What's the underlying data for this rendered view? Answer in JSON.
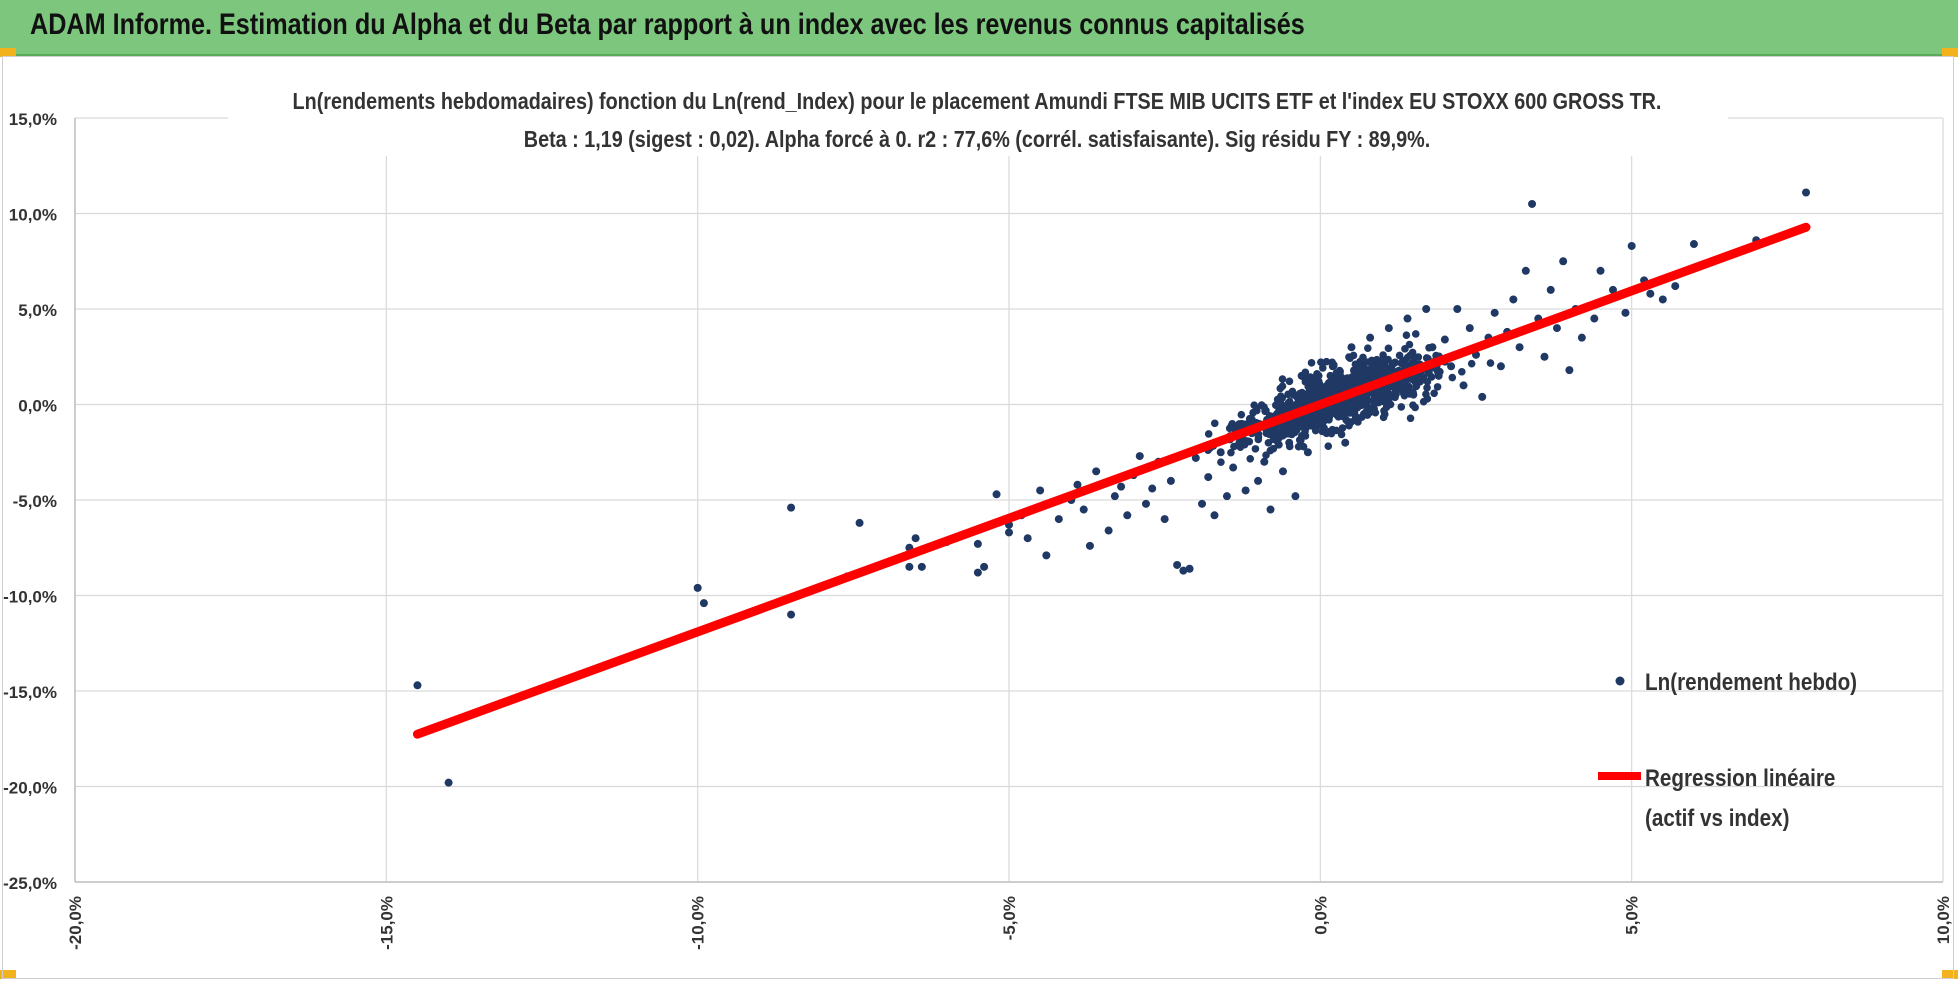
{
  "header": {
    "title": "ADAM Informe. Estimation du Alpha et du Beta par rapport à un index avec les revenus connus capitalisés"
  },
  "colors": {
    "banner": "#7dc67d",
    "points": "#203864",
    "regression": "#ff0000",
    "grid": "#d9d9d9",
    "corner": "#f2b21b"
  },
  "chart_data": {
    "type": "scatter",
    "title": "Ln(rendements hebdomadaires) fonction du Ln(rend_Index) pour le placement Amundi FTSE MIB UCITS ETF et l'index EU STOXX 600 GROSS TR.",
    "subtitle": "Beta : 1,19 (sigest : 0,02). Alpha forcé à 0. r2 : 77,6% (corrél. satisfaisante). Sig résidu FY : 89,9%.",
    "xlabel": "",
    "ylabel": "",
    "xlim": [
      -0.2,
      0.1
    ],
    "ylim": [
      -0.25,
      0.15
    ],
    "x_ticks": [
      -0.2,
      -0.15,
      -0.1,
      -0.05,
      0.0,
      0.05,
      0.1
    ],
    "y_ticks": [
      0.15,
      0.1,
      0.05,
      0.0,
      -0.05,
      -0.1,
      -0.15,
      -0.2,
      -0.25
    ],
    "x_tick_labels": [
      "-20,0%",
      "-15,0%",
      "-10,0%",
      "-5,0%",
      "0,0%",
      "5,0%",
      "10,0%"
    ],
    "y_tick_labels": [
      "15,0%",
      "10,0%",
      "5,0%",
      "0,0%",
      "-5,0%",
      "-10,0%",
      "-15,0%",
      "-20,0%",
      "-25,0%"
    ],
    "grid": true,
    "legend_position": "right",
    "series": [
      {
        "name": "Ln(rendement hebdo)",
        "kind": "scatter",
        "color": "#203864",
        "points": [
          [
            -0.145,
            -0.147
          ],
          [
            -0.14,
            -0.198
          ],
          [
            -0.1,
            -0.096
          ],
          [
            -0.099,
            -0.104
          ],
          [
            -0.085,
            -0.054
          ],
          [
            -0.085,
            -0.11
          ],
          [
            -0.074,
            -0.062
          ],
          [
            -0.076,
            -0.09
          ],
          [
            -0.066,
            -0.075
          ],
          [
            -0.064,
            -0.085
          ],
          [
            -0.066,
            -0.085
          ],
          [
            -0.065,
            -0.07
          ],
          [
            -0.06,
            -0.072
          ],
          [
            -0.055,
            -0.088
          ],
          [
            -0.054,
            -0.085
          ],
          [
            -0.055,
            -0.073
          ],
          [
            -0.052,
            -0.047
          ],
          [
            -0.05,
            -0.063
          ],
          [
            -0.05,
            -0.067
          ],
          [
            -0.048,
            -0.058
          ],
          [
            -0.047,
            -0.07
          ],
          [
            -0.045,
            -0.045
          ],
          [
            -0.044,
            -0.079
          ],
          [
            -0.042,
            -0.06
          ],
          [
            -0.04,
            -0.05
          ],
          [
            -0.039,
            -0.042
          ],
          [
            -0.038,
            -0.055
          ],
          [
            -0.037,
            -0.074
          ],
          [
            -0.036,
            -0.035
          ],
          [
            -0.034,
            -0.066
          ],
          [
            -0.033,
            -0.048
          ],
          [
            -0.032,
            -0.043
          ],
          [
            -0.031,
            -0.058
          ],
          [
            -0.03,
            -0.037
          ],
          [
            -0.029,
            -0.027
          ],
          [
            -0.028,
            -0.052
          ],
          [
            -0.027,
            -0.044
          ],
          [
            -0.026,
            -0.03
          ],
          [
            -0.025,
            -0.06
          ],
          [
            -0.024,
            -0.04
          ],
          [
            -0.023,
            -0.084
          ],
          [
            -0.022,
            -0.087
          ],
          [
            -0.021,
            -0.086
          ],
          [
            -0.02,
            -0.028
          ],
          [
            -0.019,
            -0.052
          ],
          [
            -0.018,
            -0.038
          ],
          [
            -0.017,
            -0.058
          ],
          [
            -0.016,
            -0.025
          ],
          [
            -0.015,
            -0.048
          ],
          [
            -0.014,
            -0.033
          ],
          [
            -0.013,
            -0.02
          ],
          [
            -0.012,
            -0.045
          ],
          [
            -0.011,
            -0.015
          ],
          [
            -0.01,
            -0.04
          ],
          [
            -0.009,
            -0.03
          ],
          [
            -0.008,
            -0.055
          ],
          [
            -0.007,
            -0.008
          ],
          [
            -0.006,
            -0.035
          ],
          [
            -0.005,
            -0.02
          ],
          [
            -0.004,
            -0.048
          ],
          [
            -0.003,
            0.015
          ],
          [
            -0.002,
            -0.025
          ],
          [
            -0.001,
            -0.01
          ],
          [
            0.0,
            0.008
          ],
          [
            0.001,
            -0.015
          ],
          [
            0.002,
            0.02
          ],
          [
            0.003,
            0.005
          ],
          [
            0.004,
            -0.02
          ],
          [
            0.005,
            0.03
          ],
          [
            0.006,
            0.01
          ],
          [
            0.007,
            -0.005
          ],
          [
            0.008,
            0.035
          ],
          [
            0.009,
            0.018
          ],
          [
            0.01,
            0.002
          ],
          [
            0.011,
            0.04
          ],
          [
            0.012,
            0.022
          ],
          [
            0.013,
            0.008
          ],
          [
            0.014,
            0.045
          ],
          [
            0.015,
            0.025
          ],
          [
            0.016,
            0.012
          ],
          [
            0.017,
            0.05
          ],
          [
            0.018,
            0.03
          ],
          [
            0.019,
            0.015
          ],
          [
            0.02,
            0.034
          ],
          [
            0.021,
            0.02
          ],
          [
            0.022,
            0.05
          ],
          [
            0.023,
            0.01
          ],
          [
            0.024,
            0.04
          ],
          [
            0.025,
            0.026
          ],
          [
            0.026,
            0.004
          ],
          [
            0.027,
            0.035
          ],
          [
            0.028,
            0.048
          ],
          [
            0.029,
            0.02
          ],
          [
            0.03,
            0.038
          ],
          [
            0.031,
            0.055
          ],
          [
            0.032,
            0.03
          ],
          [
            0.033,
            0.07
          ],
          [
            0.034,
            0.105
          ],
          [
            0.035,
            0.045
          ],
          [
            0.036,
            0.025
          ],
          [
            0.037,
            0.06
          ],
          [
            0.038,
            0.04
          ],
          [
            0.039,
            0.075
          ],
          [
            0.04,
            0.018
          ],
          [
            0.041,
            0.05
          ],
          [
            0.042,
            0.035
          ],
          [
            0.044,
            0.045
          ],
          [
            0.045,
            0.07
          ],
          [
            0.047,
            0.06
          ],
          [
            0.049,
            0.048
          ],
          [
            0.05,
            0.083
          ],
          [
            0.052,
            0.065
          ],
          [
            0.053,
            0.058
          ],
          [
            0.055,
            0.055
          ],
          [
            0.057,
            0.062
          ],
          [
            0.06,
            0.084
          ],
          [
            0.063,
            0.075
          ],
          [
            0.07,
            0.086
          ],
          [
            0.078,
            0.111
          ]
        ]
      },
      {
        "name": "Regression linéaire (actif vs index)",
        "legend_lines": [
          "Regression linéaire",
          "(actif vs index)"
        ],
        "kind": "line",
        "color": "#ff0000",
        "slope": 1.19,
        "intercept": 0.0,
        "x": [
          -0.145,
          0.078
        ],
        "y": [
          -0.1726,
          0.0928
        ]
      }
    ]
  }
}
